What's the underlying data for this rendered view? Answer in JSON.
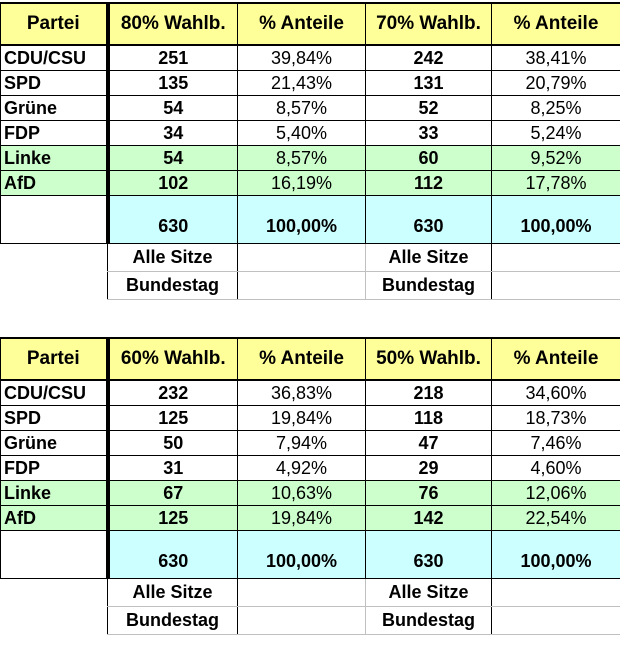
{
  "tables": [
    {
      "headers": [
        "Partei",
        "80% Wahlb.",
        "% Anteile",
        "70% Wahlb.",
        "% Anteile"
      ],
      "rows": [
        {
          "party": "CDU/CSU",
          "s1": "251",
          "p1": "39,84%",
          "s2": "242",
          "p2": "38,41%"
        },
        {
          "party": "SPD",
          "s1": "135",
          "p1": "21,43%",
          "s2": "131",
          "p2": "20,79%"
        },
        {
          "party": "Grüne",
          "s1": "54",
          "p1": "8,57%",
          "s2": "52",
          "p2": "8,25%"
        },
        {
          "party": "FDP",
          "s1": "34",
          "p1": "5,40%",
          "s2": "33",
          "p2": "5,24%"
        },
        {
          "party": "Linke",
          "s1": "54",
          "p1": "8,57%",
          "s2": "60",
          "p2": "9,52%"
        },
        {
          "party": "AfD",
          "s1": "102",
          "p1": "16,19%",
          "s2": "112",
          "p2": "17,78%"
        }
      ],
      "total": {
        "s1": "630",
        "p1": "100,00%",
        "s2": "630",
        "p2": "100,00%"
      },
      "footer": {
        "line1": "Alle Sitze",
        "line2": "Bundestag"
      }
    },
    {
      "headers": [
        "Partei",
        "60% Wahlb.",
        "% Anteile",
        "50% Wahlb.",
        "% Anteile"
      ],
      "rows": [
        {
          "party": "CDU/CSU",
          "s1": "232",
          "p1": "36,83%",
          "s2": "218",
          "p2": "34,60%"
        },
        {
          "party": "SPD",
          "s1": "125",
          "p1": "19,84%",
          "s2": "118",
          "p2": "18,73%"
        },
        {
          "party": "Grüne",
          "s1": "50",
          "p1": "7,94%",
          "s2": "47",
          "p2": "7,46%"
        },
        {
          "party": "FDP",
          "s1": "31",
          "p1": "4,92%",
          "s2": "29",
          "p2": "4,60%"
        },
        {
          "party": "Linke",
          "s1": "67",
          "p1": "10,63%",
          "s2": "76",
          "p2": "12,06%"
        },
        {
          "party": "AfD",
          "s1": "125",
          "p1": "19,84%",
          "s2": "142",
          "p2": "22,54%"
        }
      ],
      "total": {
        "s1": "630",
        "p1": "100,00%",
        "s2": "630",
        "p2": "100,00%"
      },
      "footer": {
        "line1": "Alle Sitze",
        "line2": "Bundestag"
      }
    }
  ],
  "colors": {
    "header": "#ffff99",
    "green_rows": "#ccffcc",
    "total": "#ccffff"
  }
}
